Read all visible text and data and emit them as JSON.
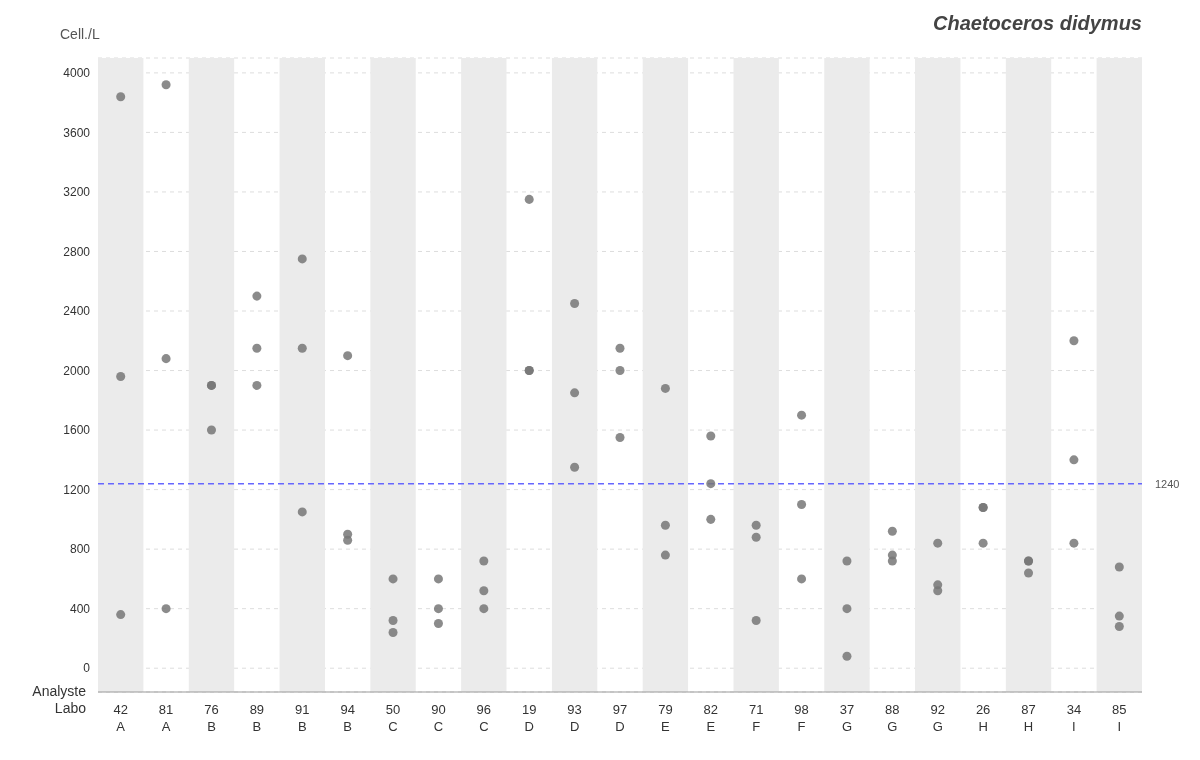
{
  "chart_data": {
    "type": "scatter",
    "title": "Chaetoceros didymus",
    "ylabel": "Cell./L",
    "categories": [
      "42\nA",
      "81\nA",
      "76\nB",
      "89\nB",
      "91\nB",
      "94\nB",
      "50\nC",
      "90\nC",
      "96\nC",
      "19\nD",
      "93\nD",
      "97\nD",
      "79\nE",
      "82\nE",
      "71\nF",
      "98\nF",
      "37\nG",
      "88\nG",
      "92\nG",
      "26\nH",
      "87\nH",
      "34\nI",
      "85\nI"
    ],
    "annotations": [
      "Analyste",
      "Labo"
    ],
    "series": [
      {
        "color": "#777777",
        "x": [
          "42\nA",
          "42\nA",
          "42\nA",
          "81\nA",
          "81\nA",
          "81\nA",
          "76\nB",
          "76\nB",
          "76\nB",
          "89\nB",
          "89\nB",
          "89\nB",
          "91\nB",
          "91\nB",
          "91\nB",
          "94\nB",
          "94\nB",
          "94\nB",
          "50\nC",
          "50\nC",
          "50\nC",
          "90\nC",
          "90\nC",
          "90\nC",
          "96\nC",
          "96\nC",
          "96\nC",
          "19\nD",
          "19\nD",
          "19\nD",
          "93\nD",
          "93\nD",
          "93\nD",
          "97\nD",
          "97\nD",
          "97\nD",
          "79\nE",
          "79\nE",
          "79\nE",
          "82\nE",
          "82\nE",
          "82\nE",
          "71\nF",
          "71\nF",
          "71\nF",
          "98\nF",
          "98\nF",
          "98\nF",
          "37\nG",
          "37\nG",
          "37\nG",
          "88\nG",
          "88\nG",
          "88\nG",
          "92\nG",
          "92\nG",
          "92\nG",
          "26\nH",
          "26\nH",
          "26\nH",
          "87\nH",
          "87\nH",
          "87\nH",
          "34\nI",
          "34\nI",
          "34\nI",
          "85\nI",
          "85\nI",
          "85\nI"
        ],
        "values": [
          3840,
          1960,
          360,
          3920,
          2080,
          400,
          1900,
          1900,
          1600,
          2500,
          2150,
          1900,
          2750,
          2150,
          1050,
          2100,
          900,
          860,
          600,
          320,
          240,
          600,
          400,
          300,
          720,
          520,
          400,
          3150,
          2000,
          2000,
          2450,
          1850,
          1350,
          2150,
          2000,
          1550,
          1880,
          960,
          760,
          1560,
          1240,
          1000,
          960,
          880,
          320,
          1700,
          1100,
          600,
          720,
          400,
          80,
          920,
          760,
          720,
          840,
          560,
          520,
          1080,
          1080,
          840,
          720,
          720,
          640,
          2200,
          1400,
          840,
          680,
          350,
          280
        ]
      }
    ],
    "ylim": [
      -160,
      4100
    ],
    "yticks": [
      0,
      400,
      800,
      1200,
      1600,
      2000,
      2400,
      2800,
      3200,
      3600,
      4000
    ],
    "grid": "y",
    "marker": "circle",
    "legend": false,
    "ref_lines": [
      {
        "axis": "y",
        "value": 1240,
        "label": "1240",
        "color": "#6666ff",
        "line_style": "dashed"
      }
    ],
    "bands": [
      {
        "axis": "x",
        "from": "42\nA",
        "to": "42\nA",
        "color": "#ebebeb"
      },
      {
        "axis": "x",
        "from": "76\nB",
        "to": "76\nB",
        "color": "#ebebeb"
      },
      {
        "axis": "x",
        "from": "91\nB",
        "to": "91\nB",
        "color": "#ebebeb"
      },
      {
        "axis": "x",
        "from": "50\nC",
        "to": "50\nC",
        "color": "#ebebeb"
      },
      {
        "axis": "x",
        "from": "96\nC",
        "to": "96\nC",
        "color": "#ebebeb"
      },
      {
        "axis": "x",
        "from": "93\nD",
        "to": "93\nD",
        "color": "#ebebeb"
      },
      {
        "axis": "x",
        "from": "79\nE",
        "to": "79\nE",
        "color": "#ebebeb"
      },
      {
        "axis": "x",
        "from": "71\nF",
        "to": "71\nF",
        "color": "#ebebeb"
      },
      {
        "axis": "x",
        "from": "37\nG",
        "to": "37\nG",
        "color": "#ebebeb"
      },
      {
        "axis": "x",
        "from": "92\nG",
        "to": "92\nG",
        "color": "#ebebeb"
      },
      {
        "axis": "x",
        "from": "87\nH",
        "to": "87\nH",
        "color": "#ebebeb"
      },
      {
        "axis": "x",
        "from": "85\nI",
        "to": "85\nI",
        "color": "#ebebeb"
      }
    ]
  }
}
